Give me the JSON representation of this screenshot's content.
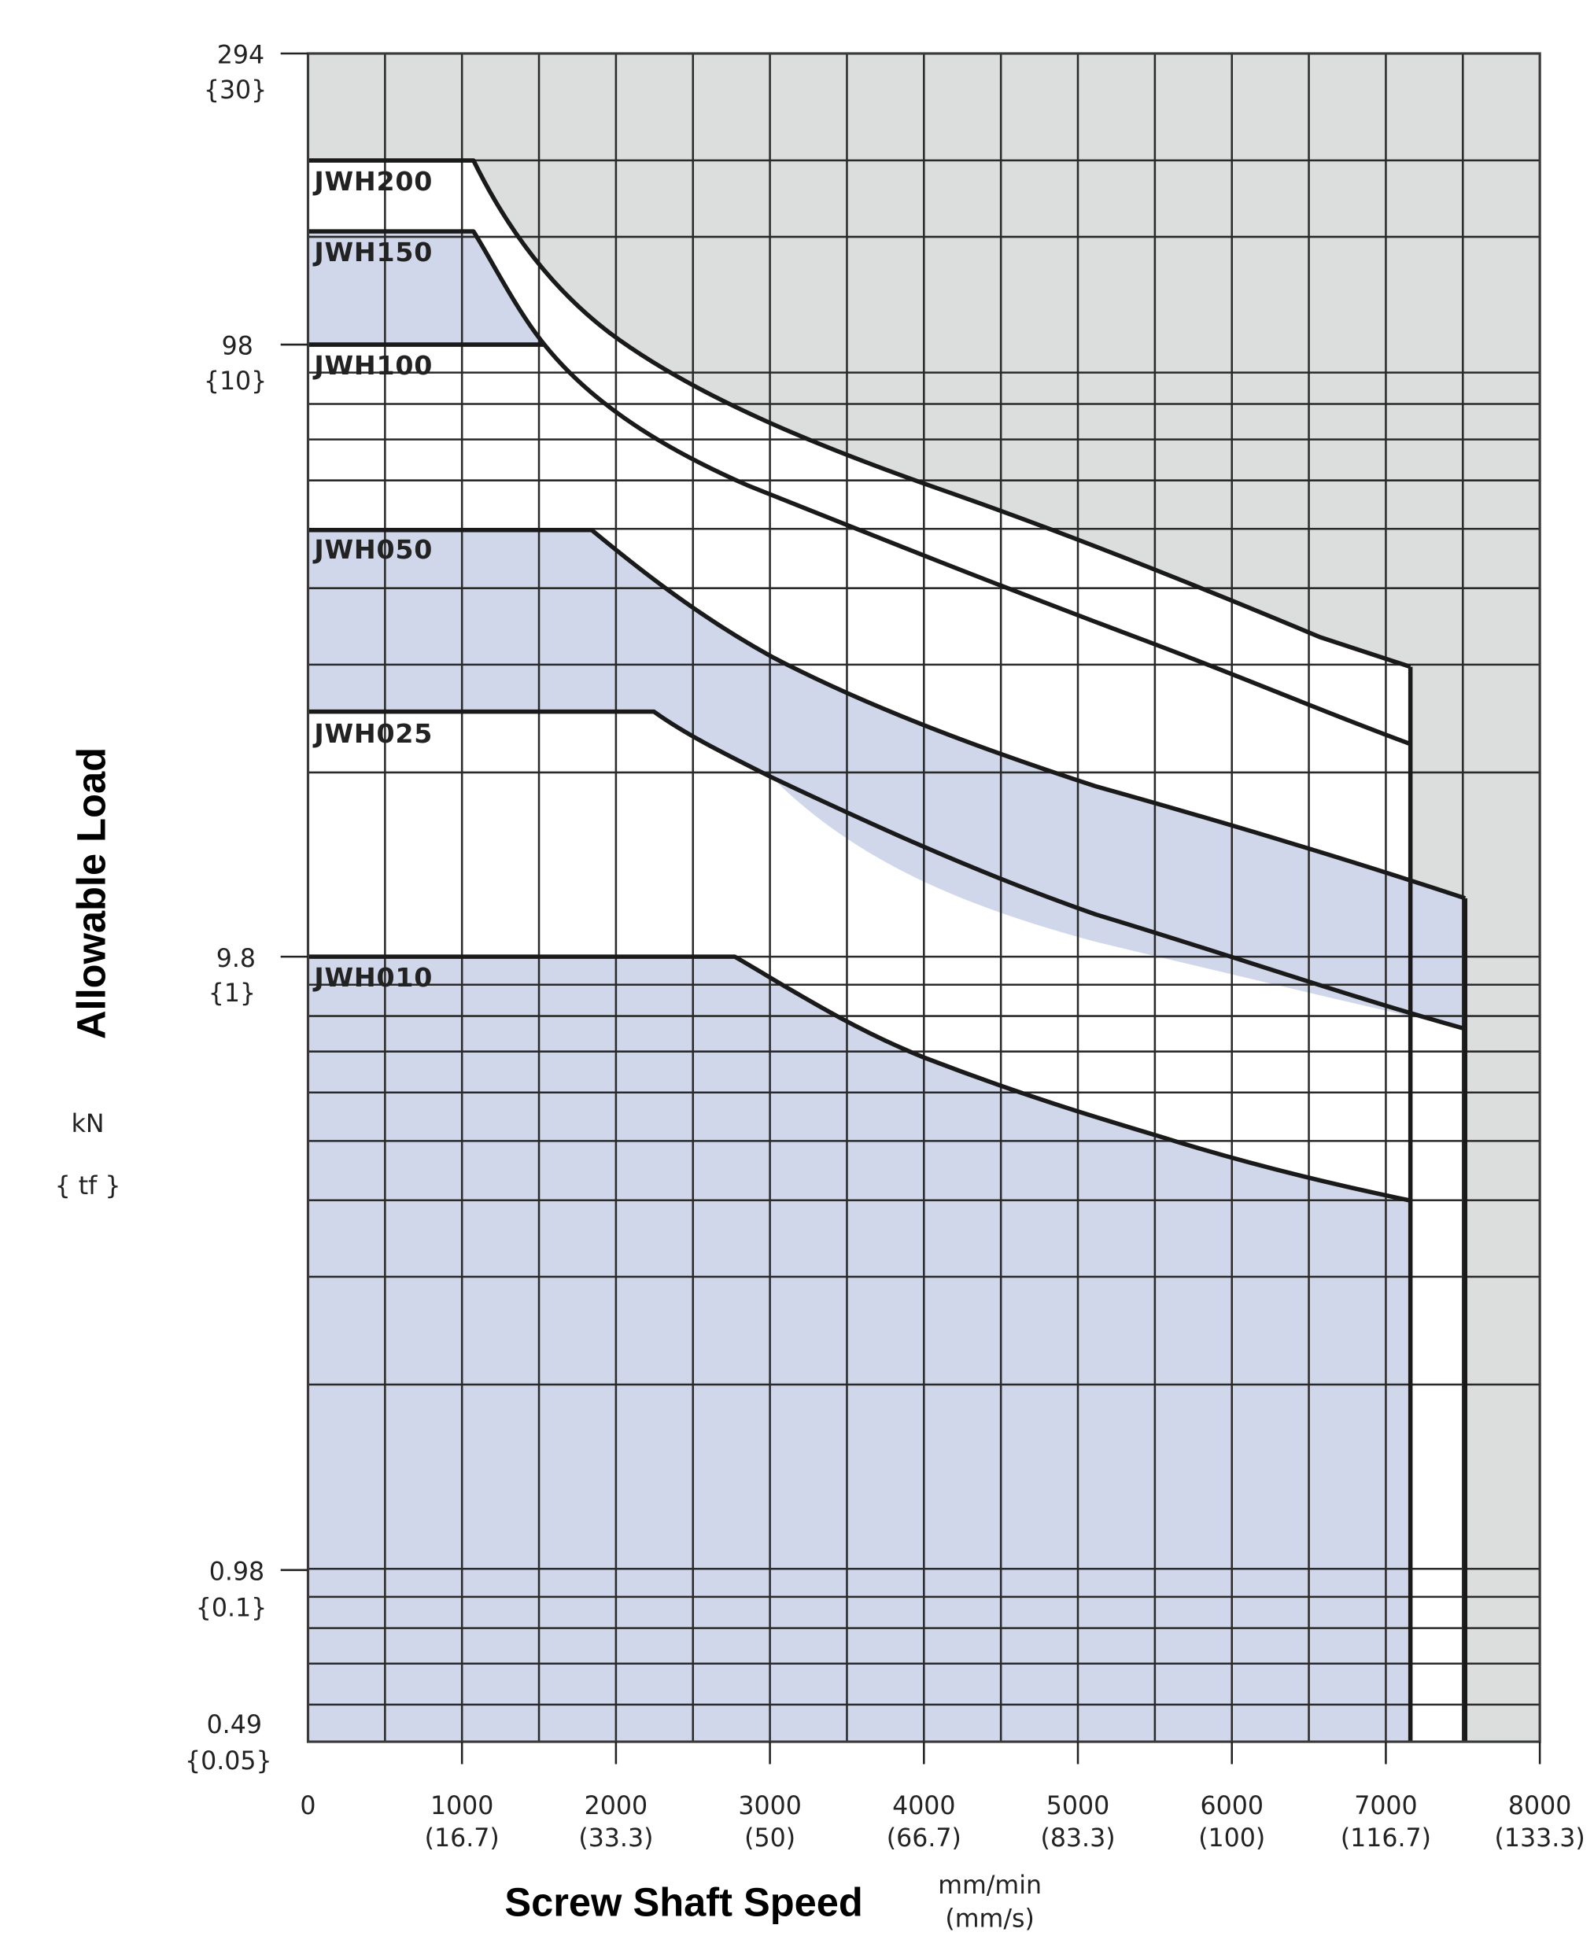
{
  "chart_data": {
    "type": "line",
    "title": "",
    "xlabel": "Screw Shaft Speed",
    "x_unit": "mm/min",
    "x_unit_secondary": "(mm/s)",
    "ylabel": "Allowable Load",
    "y_unit": "kN",
    "y_unit_secondary": "{ tf }",
    "y_scale": "log",
    "xlim": [
      0,
      8000
    ],
    "ylim": [
      0.49,
      294
    ],
    "grid": true,
    "x_ticks": [
      {
        "value": 0,
        "label": "0",
        "sub": ""
      },
      {
        "value": 1000,
        "label": "1000",
        "sub": "(16.7)"
      },
      {
        "value": 2000,
        "label": "2000",
        "sub": "(33.3)"
      },
      {
        "value": 3000,
        "label": "3000",
        "sub": "(50)"
      },
      {
        "value": 4000,
        "label": "4000",
        "sub": "(66.7)"
      },
      {
        "value": 5000,
        "label": "5000",
        "sub": "(83.3)"
      },
      {
        "value": 6000,
        "label": "6000",
        "sub": "(100)"
      },
      {
        "value": 7000,
        "label": "7000",
        "sub": "(116.7)"
      },
      {
        "value": 8000,
        "label": "8000",
        "sub": "(133.3)"
      }
    ],
    "y_ticks": [
      {
        "value": 294,
        "label": "294",
        "sub": "{30}"
      },
      {
        "value": 98,
        "label": "98",
        "sub": "{10}"
      },
      {
        "value": 9.8,
        "label": "9.8",
        "sub": "{1}"
      },
      {
        "value": 0.98,
        "label": "0.98",
        "sub": "{0.1}"
      },
      {
        "value": 0.49,
        "label": "0.49",
        "sub": "{0.05}"
      }
    ],
    "series": [
      {
        "name": "JWH200",
        "x": [
          0,
          1080,
          2000,
          3000,
          4000,
          5000,
          6000,
          7150
        ],
        "y": [
          196,
          196,
          100,
          70,
          53,
          42,
          35,
          29.5
        ]
      },
      {
        "name": "JWH150",
        "x": [
          0,
          1080,
          1500,
          2000,
          3000,
          4000,
          5000,
          6000,
          7150
        ],
        "y": [
          147,
          147,
          98,
          72,
          50,
          38,
          31,
          26,
          22
        ]
      },
      {
        "name": "JWH100",
        "x": [
          0,
          1530
        ],
        "y": [
          98,
          98
        ]
      },
      {
        "name": "JWH050",
        "x": [
          0,
          1850,
          2500,
          3000,
          4000,
          5000,
          6000,
          7150,
          7500
        ],
        "y": [
          49,
          49,
          39,
          33,
          24,
          19,
          15.5,
          12.8,
          12.2
        ]
      },
      {
        "name": "JWH025",
        "x": [
          0,
          2250,
          3000,
          4000,
          5000,
          6000,
          7150,
          7500
        ],
        "y": [
          29.4,
          29.4,
          22,
          15.8,
          12,
          9.6,
          7.9,
          7.5
        ]
      },
      {
        "name": "JWH010",
        "x": [
          0,
          2750,
          3000,
          4000,
          5000,
          6000,
          7150
        ],
        "y": [
          9.8,
          9.8,
          8.9,
          6.6,
          5.3,
          4.5,
          3.9
        ]
      }
    ],
    "speed_limits": [
      {
        "x": 7150,
        "applies_to": [
          "JWH200",
          "JWH150",
          "JWH010"
        ]
      },
      {
        "x": 7500,
        "applies_to": [
          "JWH050",
          "JWH025"
        ]
      }
    ]
  },
  "colors": {
    "grey_region": "#dcdddd",
    "blue_band": "#d0d7ea",
    "white_band": "#ffffff",
    "line": "#1a1a1a",
    "grid": "#2a2a2a"
  }
}
